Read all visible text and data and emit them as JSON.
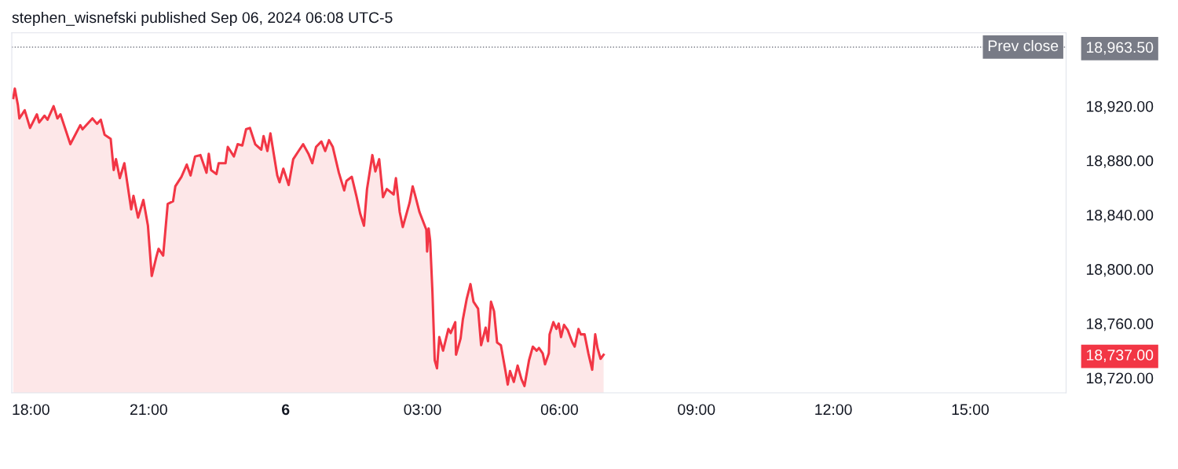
{
  "chart_data": {
    "type": "area",
    "title": "stephen_wisnefski published Sep 06, 2024 06:08 UTC-5",
    "series": [
      {
        "color": "#f23645",
        "x": [
          "2024-09-05T18:02",
          "2024-09-05T18:04",
          "2024-09-05T18:08",
          "2024-09-05T18:10",
          "2024-09-05T18:17",
          "2024-09-05T18:24",
          "2024-09-05T18:33",
          "2024-09-05T18:36",
          "2024-09-05T18:43",
          "2024-09-05T18:47",
          "2024-09-05T18:55",
          "2024-09-05T19:00",
          "2024-09-05T19:04",
          "2024-09-05T19:17",
          "2024-09-05T19:30",
          "2024-09-05T19:33",
          "2024-09-05T19:46",
          "2024-09-05T19:52",
          "2024-09-05T19:57",
          "2024-09-05T20:02",
          "2024-09-05T20:10",
          "2024-09-05T20:14",
          "2024-09-05T20:17",
          "2024-09-05T20:22",
          "2024-09-05T20:28",
          "2024-09-05T20:37",
          "2024-09-05T20:40",
          "2024-09-05T20:46",
          "2024-09-05T20:53",
          "2024-09-05T20:59",
          "2024-09-05T21:04",
          "2024-09-05T21:10",
          "2024-09-05T21:13",
          "2024-09-05T21:19",
          "2024-09-05T21:25",
          "2024-09-05T21:32",
          "2024-09-05T21:35",
          "2024-09-05T21:43",
          "2024-09-05T21:50",
          "2024-09-05T21:55",
          "2024-09-05T22:01",
          "2024-09-05T22:08",
          "2024-09-05T22:16",
          "2024-09-05T22:19",
          "2024-09-05T22:22",
          "2024-09-05T22:29",
          "2024-09-05T22:32",
          "2024-09-05T22:41",
          "2024-09-05T22:44",
          "2024-09-05T22:52",
          "2024-09-05T22:57",
          "2024-09-05T23:03",
          "2024-09-05T23:08",
          "2024-09-05T23:13",
          "2024-09-05T23:20",
          "2024-09-05T23:28",
          "2024-09-05T23:31",
          "2024-09-05T23:36",
          "2024-09-05T23:40",
          "2024-09-05T23:49",
          "2024-09-05T23:52",
          "2024-09-05T23:57",
          "2024-09-06T00:04",
          "2024-09-06T00:10",
          "2024-09-06T00:17",
          "2024-09-06T00:23",
          "2024-09-06T00:30",
          "2024-09-06T00:35",
          "2024-09-06T00:40",
          "2024-09-06T00:47",
          "2024-09-06T00:52",
          "2024-09-06T00:57",
          "2024-09-06T01:02",
          "2024-09-06T01:10",
          "2024-09-06T01:17",
          "2024-09-06T01:20",
          "2024-09-06T01:27",
          "2024-09-06T01:33",
          "2024-09-06T01:38",
          "2024-09-06T01:43",
          "2024-09-06T01:47",
          "2024-09-06T01:54",
          "2024-09-06T01:58",
          "2024-09-06T02:03",
          "2024-09-06T02:08",
          "2024-09-06T02:13",
          "2024-09-06T02:22",
          "2024-09-06T02:25",
          "2024-09-06T02:30",
          "2024-09-06T02:34",
          "2024-09-06T02:43",
          "2024-09-06T02:47",
          "2024-09-06T02:50",
          "2024-09-06T02:56",
          "2024-09-06T03:05",
          "2024-09-06T03:06",
          "2024-09-06T03:08",
          "2024-09-06T03:10",
          "2024-09-06T03:13",
          "2024-09-06T03:16",
          "2024-09-06T03:19",
          "2024-09-06T03:22",
          "2024-09-06T03:27",
          "2024-09-06T03:34",
          "2024-09-06T03:37",
          "2024-09-06T03:43",
          "2024-09-06T03:44",
          "2024-09-06T03:50",
          "2024-09-06T03:53",
          "2024-09-06T03:58",
          "2024-09-06T04:03",
          "2024-09-06T04:07",
          "2024-09-06T04:13",
          "2024-09-06T04:17",
          "2024-09-06T04:23",
          "2024-09-06T04:26",
          "2024-09-06T04:30",
          "2024-09-06T04:34",
          "2024-09-06T04:38",
          "2024-09-06T04:43",
          "2024-09-06T04:49",
          "2024-09-06T04:52",
          "2024-09-06T04:55",
          "2024-09-06T05:00",
          "2024-09-06T05:05",
          "2024-09-06T05:10",
          "2024-09-06T05:14",
          "2024-09-06T05:20",
          "2024-09-06T05:25",
          "2024-09-06T05:30",
          "2024-09-06T05:33",
          "2024-09-06T05:38",
          "2024-09-06T05:41",
          "2024-09-06T05:46",
          "2024-09-06T05:47",
          "2024-09-06T05:52",
          "2024-09-06T05:56",
          "2024-09-06T05:59",
          "2024-09-06T06:02",
          "2024-09-06T06:06",
          "2024-09-06T06:11",
          "2024-09-06T06:17",
          "2024-09-06T06:20",
          "2024-09-06T06:25",
          "2024-09-06T06:28",
          "2024-09-06T06:33",
          "2024-09-06T06:38",
          "2024-09-06T06:43",
          "2024-09-06T06:47",
          "2024-09-06T06:50",
          "2024-09-06T06:54",
          "2024-09-06T06:58"
        ],
        "values": [
          18926,
          18933,
          18921,
          18911,
          18917,
          18904,
          18914,
          18908,
          18913,
          18910,
          18920,
          18911,
          18914,
          18892,
          18906,
          18903,
          18911,
          18907,
          18910,
          18899,
          18896,
          18873,
          18881,
          18867,
          18878,
          18844,
          18854,
          18838,
          18851,
          18832,
          18795,
          18809,
          18815,
          18810,
          18848,
          18850,
          18861,
          18868,
          18877,
          18869,
          18883,
          18884,
          18871,
          18885,
          18873,
          18870,
          18878,
          18878,
          18890,
          18883,
          18892,
          18891,
          18903,
          18904,
          18892,
          18888,
          18898,
          18887,
          18900,
          18869,
          18864,
          18874,
          18862,
          18881,
          18887,
          18892,
          18885,
          18878,
          18890,
          18894,
          18887,
          18895,
          18890,
          18871,
          18858,
          18865,
          18868,
          18854,
          18841,
          18832,
          18859,
          18884,
          18872,
          18881,
          18853,
          18859,
          18855,
          18867,
          18842,
          18831,
          18849,
          18861,
          18855,
          18842,
          18829,
          18813,
          18830,
          18821,
          18783,
          18733,
          18727,
          18750,
          18740,
          18756,
          18753,
          18761,
          18737,
          18749,
          18763,
          18778,
          18789,
          18776,
          18771,
          18744,
          18757,
          18747,
          18776,
          18769,
          18746,
          18744,
          18725,
          18715,
          18725,
          18717,
          18729,
          18719,
          18714,
          18733,
          18743,
          18740,
          18742,
          18738,
          18730,
          18738,
          18752,
          18761,
          18756,
          18760,
          18750,
          18759,
          18755,
          18746,
          18743,
          18756,
          18752,
          18752,
          18738,
          18726,
          18752,
          18742,
          18734,
          18737
        ]
      }
    ],
    "xlim": [
      "2024-09-05T18:00",
      "2024-09-06T17:06"
    ],
    "xticks": [
      {
        "value": "2024-09-05T18:00",
        "label": "18:00"
      },
      {
        "value": "2024-09-05T21:00",
        "label": "21:00"
      },
      {
        "value": "2024-09-06T00:00",
        "label": "6"
      },
      {
        "value": "2024-09-06T03:00",
        "label": "03:00"
      },
      {
        "value": "2024-09-06T06:00",
        "label": "06:00"
      },
      {
        "value": "2024-09-06T09:00",
        "label": "09:00"
      },
      {
        "value": "2024-09-06T12:00",
        "label": "12:00"
      },
      {
        "value": "2024-09-06T15:00",
        "label": "15:00"
      }
    ],
    "ylim": [
      18709,
      18974
    ],
    "yticks": [
      {
        "value": 18720,
        "label": "18,720.00"
      },
      {
        "value": 18737,
        "label": "18,737.00"
      },
      {
        "value": 18760,
        "label": "18,760.00"
      },
      {
        "value": 18800,
        "label": "18,800.00"
      },
      {
        "value": 18840,
        "label": "18,840.00"
      },
      {
        "value": 18880,
        "label": "18,880.00"
      },
      {
        "value": 18920,
        "label": "18,920.00"
      },
      {
        "value": 18963.5,
        "label": "18,963.50"
      }
    ],
    "ref_lines": [
      {
        "axis": "y",
        "value": 18963.5,
        "label": "Prev close",
        "color": "#787b86",
        "line_style": "dotted"
      }
    ],
    "grid": false
  }
}
